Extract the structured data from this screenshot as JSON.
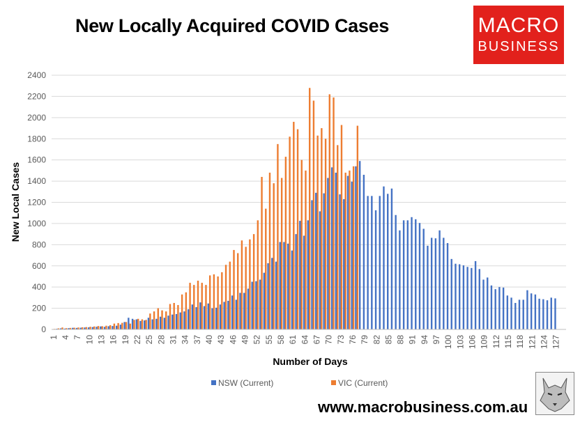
{
  "header": {
    "title": "New Locally Acquired COVID Cases"
  },
  "logo": {
    "line1": "MACRO",
    "line2": "BUSINESS"
  },
  "footer": {
    "url": "www.macrobusiness.com.au"
  },
  "colors": {
    "nsw": "#4472c4",
    "vic": "#ed7d31",
    "grid": "#d9d9d9",
    "brand_red": "#e2211c"
  },
  "chart_data": {
    "type": "bar",
    "title": "New Locally Acquired COVID Cases",
    "xlabel": "Number of Days",
    "ylabel": "New Local Cases",
    "ylim": [
      0,
      2400
    ],
    "yticks": [
      0,
      200,
      400,
      600,
      800,
      1000,
      1200,
      1400,
      1600,
      1800,
      2000,
      2200,
      2400
    ],
    "xtick_labels": [
      "1",
      "4",
      "7",
      "10",
      "13",
      "16",
      "19",
      "22",
      "25",
      "28",
      "31",
      "34",
      "37",
      "40",
      "43",
      "46",
      "49",
      "52",
      "55",
      "58",
      "61",
      "64",
      "67",
      "70",
      "73",
      "76",
      "79",
      "82",
      "85",
      "88",
      "91",
      "94",
      "97",
      "100",
      "103",
      "106",
      "109",
      "112",
      "115",
      "118",
      "121",
      "124",
      "127"
    ],
    "x": {
      "start": 1,
      "end": 129
    },
    "grid": "horizontal",
    "legend_position": "bottom",
    "series": [
      {
        "name": "NSW (Current)",
        "color": "#4472c4",
        "values": [
          3,
          6,
          10,
          8,
          12,
          15,
          14,
          16,
          18,
          19,
          22,
          25,
          28,
          24,
          30,
          32,
          35,
          45,
          70,
          110,
          100,
          95,
          80,
          85,
          110,
          95,
          100,
          120,
          110,
          130,
          140,
          145,
          160,
          170,
          190,
          235,
          210,
          255,
          220,
          245,
          200,
          205,
          235,
          260,
          270,
          320,
          280,
          345,
          345,
          385,
          450,
          455,
          470,
          535,
          625,
          675,
          640,
          825,
          825,
          810,
          745,
          900,
          1025,
          885,
          1030,
          1220,
          1290,
          1115,
          1285,
          1430,
          1530,
          1480,
          1275,
          1230,
          1450,
          1395,
          1540,
          1590,
          1460,
          1260,
          1260,
          1125,
          1260,
          1350,
          1280,
          1330,
          1080,
          935,
          1030,
          1030,
          1060,
          1040,
          1005,
          950,
          790,
          865,
          860,
          935,
          865,
          815,
          665,
          620,
          615,
          605,
          590,
          580,
          645,
          570,
          470,
          490,
          415,
          380,
          400,
          395,
          320,
          300,
          250,
          280,
          280,
          370,
          340,
          330,
          290,
          285,
          275,
          300,
          293
        ]
      },
      {
        "name": "VIC (Current)",
        "color": "#ed7d31",
        "values": [
          5,
          10,
          18,
          12,
          14,
          16,
          18,
          20,
          22,
          25,
          28,
          32,
          30,
          35,
          40,
          55,
          60,
          62,
          70,
          55,
          90,
          100,
          95,
          90,
          150,
          170,
          200,
          180,
          170,
          240,
          250,
          230,
          330,
          350,
          440,
          420,
          460,
          440,
          420,
          510,
          520,
          500,
          540,
          610,
          640,
          750,
          720,
          840,
          780,
          850,
          900,
          1030,
          1440,
          1140,
          1480,
          1380,
          1750,
          1430,
          1630,
          1820,
          1960,
          1890,
          1600,
          1500,
          2280,
          2160,
          1830,
          1900,
          1800,
          2220,
          2190,
          1740,
          1930,
          1480,
          1500,
          1540,
          1923
        ]
      }
    ],
    "annotations": [
      {
        "text": "1923",
        "series": "VIC (Current)",
        "x": 85
      },
      {
        "text": "293",
        "series": "NSW (Current)",
        "x": 129
      }
    ]
  }
}
